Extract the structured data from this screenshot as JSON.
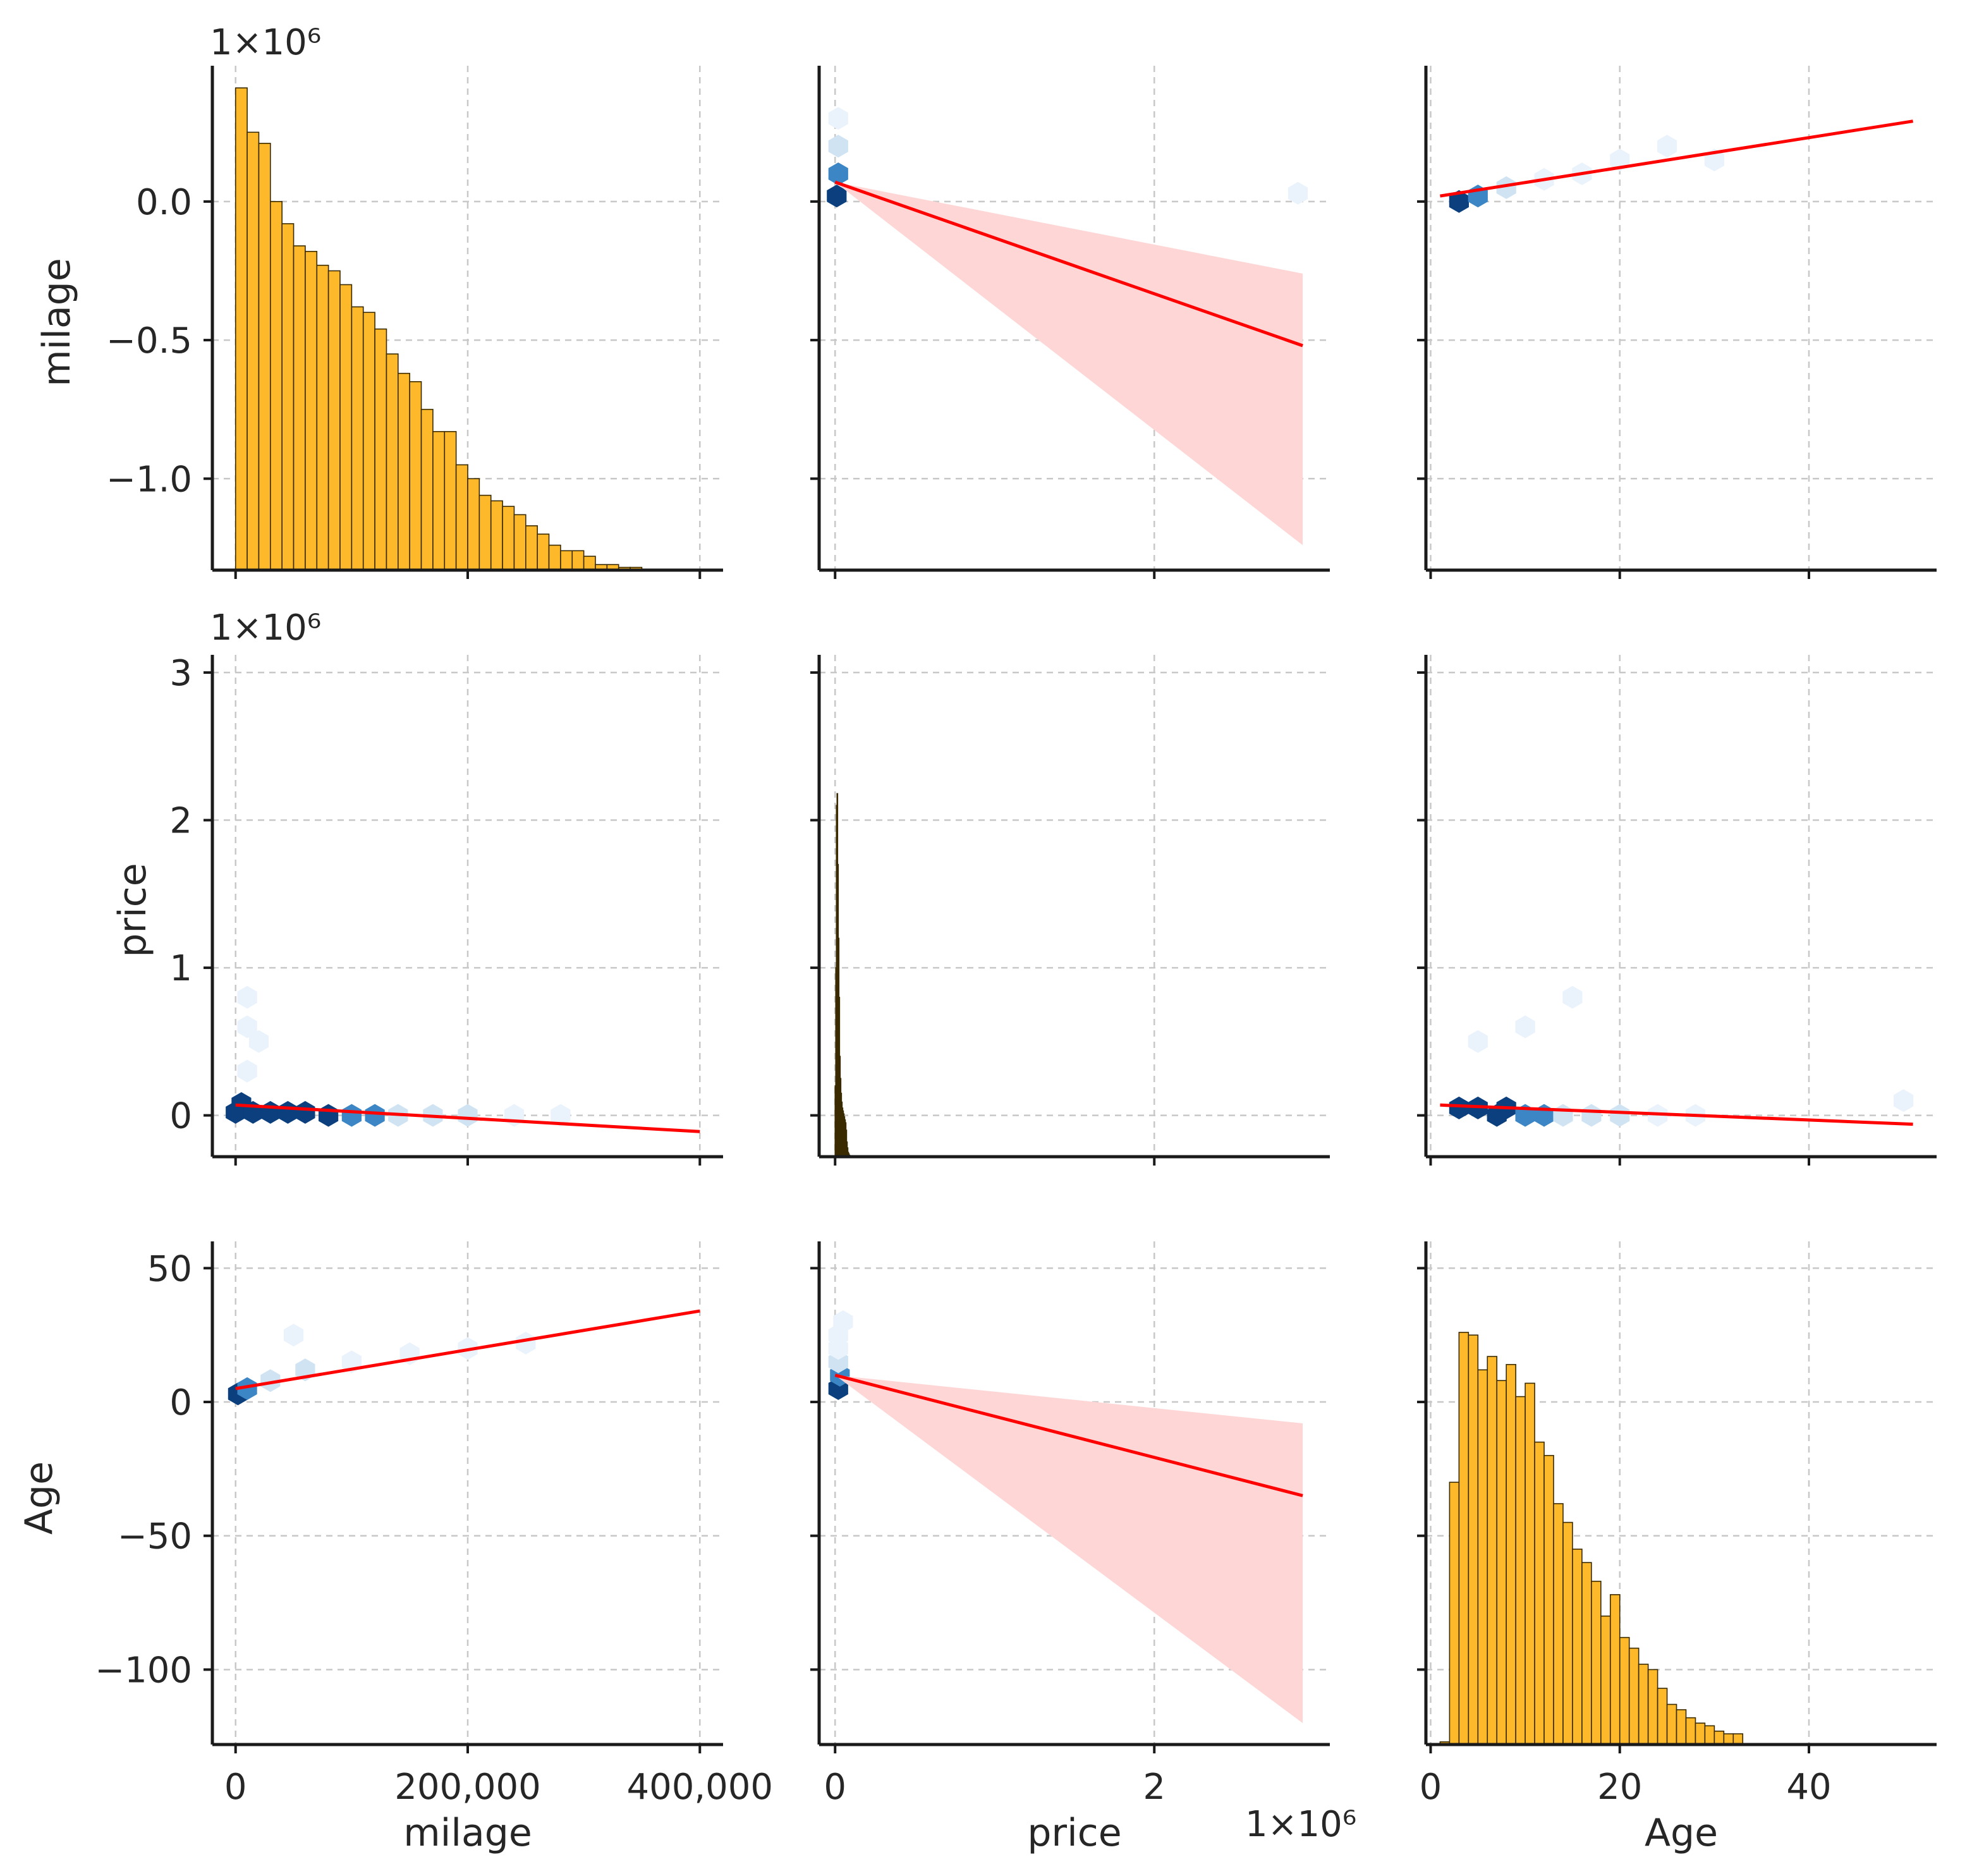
{
  "colors": {
    "histogram": "#fdb92a",
    "regression_line": "#ff0000",
    "ci_band": "#ffd6d6",
    "hex_dark": "#0b3f7d",
    "hex_mid": "#3d86c6",
    "hex_light": "#cfe3f3",
    "hex_faint": "#eaf3fb"
  },
  "chart_data": {
    "type": "pairplot",
    "variables": [
      "milage",
      "price",
      "Age"
    ],
    "axis_labels": {
      "milage": "milage",
      "price": "price",
      "Age": "Age"
    },
    "offset_labels": {
      "row0_y": "1×10⁶",
      "row1_y": "1×10⁶",
      "col1_x": "1×10⁶"
    },
    "x_axes": {
      "milage": {
        "min": -20000,
        "max": 420000,
        "ticks": [
          0,
          200000,
          400000
        ],
        "tick_labels": [
          "0",
          "200,000",
          "400,000"
        ]
      },
      "price": {
        "min": -0.1,
        "max": 3.1,
        "ticks": [
          0,
          2
        ],
        "tick_labels": [
          "0",
          "2"
        ]
      },
      "Age": {
        "min": -0.5,
        "max": 53.5,
        "ticks": [
          0,
          20,
          40
        ],
        "tick_labels": [
          "0",
          "20",
          "40"
        ]
      }
    },
    "y_axes": {
      "milage": {
        "min": -1.33,
        "max": 0.49,
        "ticks": [
          0.0,
          -0.5,
          -1.0
        ],
        "tick_labels": [
          "0.0",
          "−0.5",
          "−1.0"
        ]
      },
      "price": {
        "min": -0.28,
        "max": 3.12,
        "ticks": [
          0,
          1,
          2,
          3
        ],
        "tick_labels": [
          "0",
          "1",
          "2",
          "3"
        ]
      },
      "Age": {
        "min": -128,
        "max": 60,
        "ticks": [
          50,
          0,
          -50,
          -100
        ],
        "tick_labels": [
          "50",
          "0",
          "−50",
          "−100"
        ]
      }
    },
    "histograms": {
      "milage": {
        "bin_start": 0,
        "bin_width": 10000,
        "counts": [
          0.41,
          0.25,
          0.21,
          0.0,
          -0.08,
          -0.16,
          -0.18,
          -0.23,
          -0.25,
          -0.3,
          -0.38,
          -0.4,
          -0.46,
          -0.55,
          -0.62,
          -0.65,
          -0.75,
          -0.83,
          -0.83,
          -0.95,
          -1.0,
          -1.06,
          -1.08,
          -1.1,
          -1.13,
          -1.17,
          -1.2,
          -1.24,
          -1.26,
          -1.26,
          -1.28,
          -1.31,
          -1.31,
          -1.32,
          -1.32,
          -1.33,
          -1.33,
          -1.33,
          -1.33,
          -1.33
        ]
      },
      "price": {
        "bin_start": 0,
        "bin_width": 0.004,
        "counts": [
          0.2,
          1.0,
          2.1,
          2.18,
          1.7,
          1.2,
          0.8,
          0.4,
          0.25,
          0.15,
          0.09,
          0.05,
          0.03,
          0.01,
          -0.01,
          -0.03,
          -0.05,
          -0.1,
          -0.18,
          -0.22,
          -0.25,
          -0.26,
          -0.27
        ]
      },
      "Age": {
        "bin_start": 1,
        "bin_width": 1,
        "counts": [
          -127,
          -30,
          26,
          25,
          12,
          17,
          8,
          14,
          2,
          7,
          -15,
          -20,
          -38,
          -45,
          -55,
          -60,
          -67,
          -80,
          -72,
          -88,
          -92,
          -98,
          -100,
          -107,
          -113,
          -115,
          -118,
          -120,
          -121,
          -123,
          -124,
          -124
        ]
      }
    },
    "regressions": [
      {
        "row": "milage",
        "col": "price",
        "x": [
          0.0,
          2.93
        ],
        "y": [
          0.07,
          -0.52
        ],
        "ci_low_end": -1.24,
        "ci_high_end": -0.26,
        "ci": true
      },
      {
        "row": "milage",
        "col": "Age",
        "x": [
          1,
          51
        ],
        "y": [
          0.02,
          0.29
        ],
        "ci": false
      },
      {
        "row": "price",
        "col": "milage",
        "x": [
          0,
          400000
        ],
        "y": [
          0.07,
          -0.11
        ],
        "ci": false
      },
      {
        "row": "price",
        "col": "Age",
        "x": [
          1,
          51
        ],
        "y": [
          0.07,
          -0.06
        ],
        "ci": false
      },
      {
        "row": "Age",
        "col": "milage",
        "x": [
          0,
          400000
        ],
        "y": [
          5,
          34
        ],
        "ci": false
      },
      {
        "row": "Age",
        "col": "price",
        "x": [
          0.0,
          2.93
        ],
        "y": [
          10,
          -35
        ],
        "ci_low_end": -120,
        "ci_high_end": -8,
        "ci": true
      }
    ],
    "hexbin_clusters": {
      "milage_price": [
        [
          0,
          0.02,
          3
        ],
        [
          5000,
          0.08,
          3
        ],
        [
          15000,
          0.02,
          3
        ],
        [
          30000,
          0.02,
          3
        ],
        [
          45000,
          0.02,
          3
        ],
        [
          60000,
          0.02,
          3
        ],
        [
          80000,
          0.0,
          3
        ],
        [
          100000,
          0.0,
          2
        ],
        [
          120000,
          0.0,
          2
        ],
        [
          140000,
          0.0,
          1
        ],
        [
          170000,
          0.0,
          1
        ],
        [
          200000,
          0.0,
          1
        ],
        [
          240000,
          0.0,
          0
        ],
        [
          280000,
          0.0,
          0
        ],
        [
          10000,
          0.3,
          0
        ],
        [
          10000,
          0.6,
          0
        ],
        [
          10000,
          0.8,
          0
        ],
        [
          20000,
          0.5,
          0
        ]
      ],
      "age_price": [
        [
          3,
          0.05,
          3
        ],
        [
          5,
          0.05,
          3
        ],
        [
          7,
          0.0,
          3
        ],
        [
          8,
          0.05,
          3
        ],
        [
          10,
          0.0,
          2
        ],
        [
          12,
          0.0,
          2
        ],
        [
          14,
          0.0,
          1
        ],
        [
          17,
          0.0,
          1
        ],
        [
          20,
          0.0,
          1
        ],
        [
          24,
          0.0,
          0
        ],
        [
          28,
          0.0,
          0
        ],
        [
          50,
          0.1,
          0
        ],
        [
          5,
          0.5,
          0
        ],
        [
          10,
          0.6,
          0
        ],
        [
          15,
          0.8,
          0
        ]
      ],
      "milage_age": [
        [
          2000,
          3,
          3
        ],
        [
          10000,
          5,
          2
        ],
        [
          30000,
          8,
          1
        ],
        [
          60000,
          12,
          1
        ],
        [
          100000,
          15,
          0
        ],
        [
          150000,
          18,
          0
        ],
        [
          200000,
          20,
          0
        ],
        [
          250000,
          22,
          0
        ],
        [
          50000,
          25,
          0
        ]
      ],
      "price_age": [
        [
          0.02,
          5,
          3
        ],
        [
          0.03,
          10,
          2
        ],
        [
          0.02,
          15,
          1
        ],
        [
          0.02,
          20,
          0
        ],
        [
          0.02,
          25,
          0
        ],
        [
          0.05,
          30,
          0
        ]
      ],
      "age_milage": [
        [
          3,
          0.0,
          3
        ],
        [
          5,
          0.02,
          2
        ],
        [
          8,
          0.05,
          1
        ],
        [
          12,
          0.08,
          0
        ],
        [
          16,
          0.1,
          0
        ],
        [
          20,
          0.15,
          0
        ],
        [
          25,
          0.2,
          0
        ],
        [
          30,
          0.15,
          0
        ]
      ],
      "price_milage": [
        [
          0.01,
          0.02,
          3
        ],
        [
          0.02,
          0.1,
          2
        ],
        [
          0.02,
          0.2,
          1
        ],
        [
          0.02,
          0.3,
          0
        ],
        [
          2.9,
          0.03,
          0
        ]
      ]
    }
  }
}
